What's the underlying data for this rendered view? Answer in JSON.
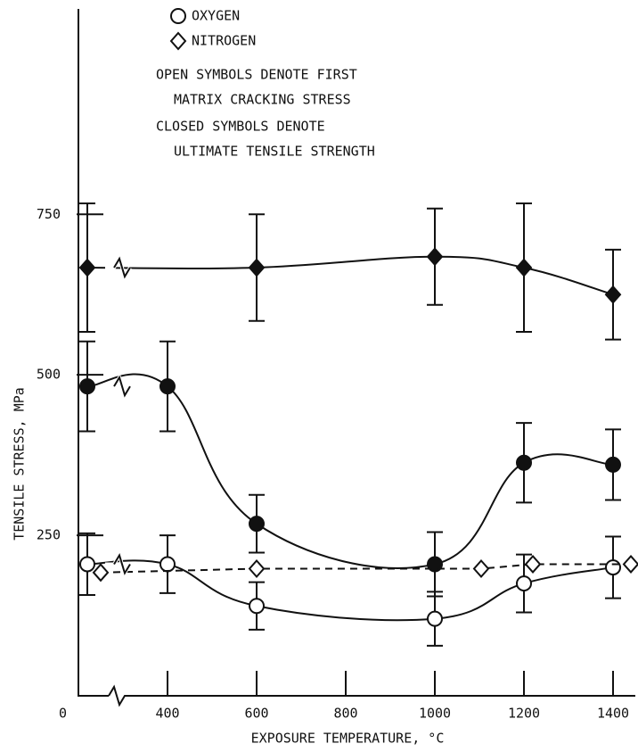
{
  "chart_data": {
    "type": "errorbar",
    "xlabel": "EXPOSURE TEMPERATURE, °C",
    "ylabel": "TENSILE STRESS, MPa",
    "notes": [
      "OPEN SYMBOLS DENOTE FIRST",
      "MATRIX CRACKING STRESS",
      "CLOSED SYMBOLS DENOTE",
      "ULTIMATE TENSILE STRENGTH"
    ],
    "xlim": [
      200,
      1450
    ],
    "xticks": [
      400,
      600,
      800,
      1000,
      1200,
      1400
    ],
    "ylim": [
      0,
      1070
    ],
    "yticks": [
      0,
      250,
      500,
      750
    ],
    "series": [
      {
        "name": "OXYGEN",
        "marker": "circle",
        "color": "#111111",
        "ultimate": {
          "x": [
            220,
            400,
            600,
            1000,
            1200,
            1400
          ],
          "values": [
            482,
            482,
            268,
            205,
            363,
            360
          ],
          "errors": [
            70,
            70,
            45,
            50,
            62,
            55
          ]
        },
        "first_cracking": {
          "x": [
            220,
            400,
            600,
            1000,
            1200,
            1400
          ],
          "values": [
            205,
            205,
            140,
            120,
            175,
            200
          ],
          "errors": [
            48,
            45,
            37,
            42,
            45,
            48
          ]
        }
      },
      {
        "name": "NITROGEN",
        "marker": "diamond",
        "color": "#111111",
        "ultimate": {
          "x": [
            220,
            600,
            1000,
            1200,
            1400
          ],
          "values": [
            667,
            667,
            684,
            667,
            625
          ],
          "errors": [
            100,
            83,
            75,
            100,
            70
          ]
        },
        "first_cracking": {
          "x": [
            250,
            600,
            1104,
            1220,
            1440
          ],
          "values": [
            192,
            198,
            198,
            205,
            205
          ]
        }
      }
    ]
  }
}
